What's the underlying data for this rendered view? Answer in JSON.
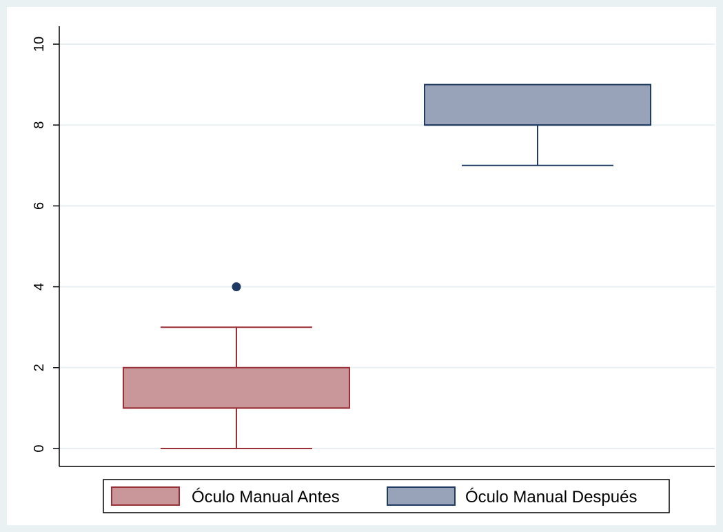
{
  "chart_data": {
    "type": "box",
    "title": "",
    "xlabel": "",
    "ylabel": "",
    "ylim": [
      0,
      10
    ],
    "yticks": [
      "0",
      "2",
      "4",
      "6",
      "8",
      "10"
    ],
    "grid": true,
    "legend_placement": "bottom",
    "series": [
      {
        "name": "Óculo Manual Antes",
        "min": 0,
        "q1": 1,
        "median": 1,
        "q3": 2,
        "max": 3,
        "outliers": [
          4
        ],
        "fill": "#c9979a",
        "stroke": "#9b2f36"
      },
      {
        "name": "Óculo Manual Después",
        "min": 7,
        "q1": 8,
        "median": 8,
        "q3": 9,
        "max": 9,
        "outliers": [],
        "fill": "#98a2b8",
        "stroke": "#1f3a63"
      }
    ],
    "outlier_color": "#1f3a63"
  },
  "colors": {
    "outer_background": "#eaf1f3",
    "plot_background": "#ffffff",
    "gridline": "#e8eff2",
    "axis": "#000000"
  }
}
